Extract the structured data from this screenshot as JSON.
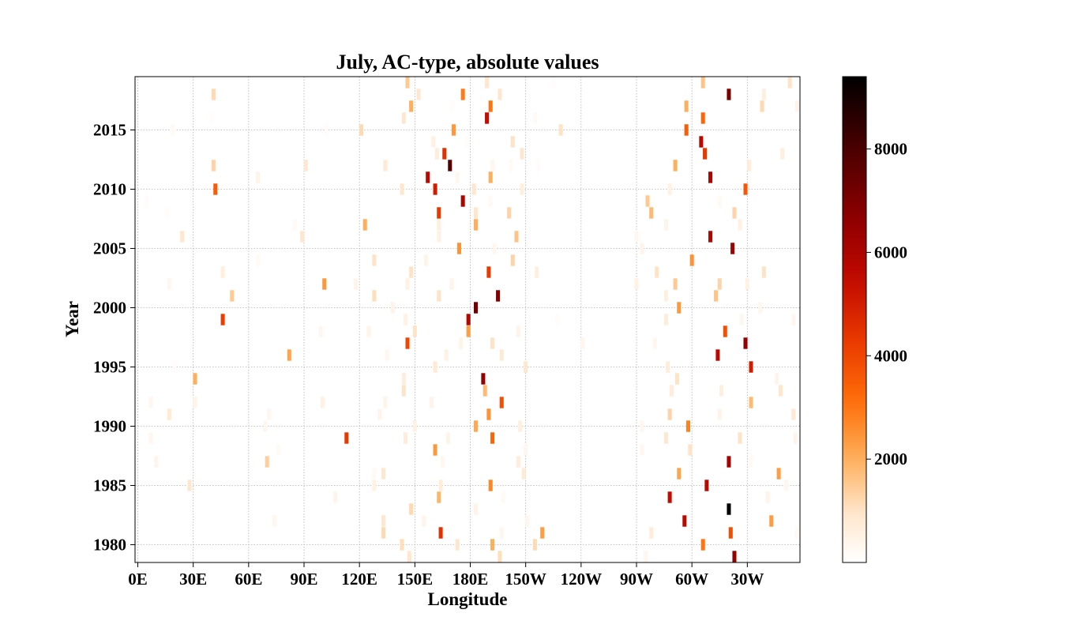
{
  "chart_data": {
    "type": "heatmap",
    "title": "July, AC-type, absolute values",
    "xlabel": "Longitude",
    "ylabel": "Year",
    "x_tick_labels": [
      "0E",
      "30E",
      "60E",
      "90E",
      "120E",
      "150E",
      "180E",
      "150W",
      "120W",
      "90W",
      "60W",
      "30W"
    ],
    "x_tick_positions_deg": [
      0,
      30,
      60,
      90,
      120,
      150,
      180,
      210,
      240,
      270,
      300,
      330
    ],
    "xlim_deg": [
      -1.5,
      358.5
    ],
    "y_ticks": [
      1980,
      1985,
      1990,
      1995,
      2000,
      2005,
      2010,
      2015
    ],
    "ylim": [
      1978.5,
      2019.5
    ],
    "grid": true,
    "colorbar": {
      "colormap": "gist_heat_r",
      "range": [
        0,
        9400
      ],
      "ticks": [
        2000,
        4000,
        6000,
        8000
      ]
    },
    "cell_width_deg": 2.5,
    "cells": [
      [
        146,
        2019,
        1500
      ],
      [
        189,
        2019,
        900
      ],
      [
        306,
        2019,
        1600
      ],
      [
        353,
        2019,
        1000
      ],
      [
        225,
        2019,
        100
      ],
      [
        41,
        2018,
        1200
      ],
      [
        152,
        2018,
        900
      ],
      [
        176,
        2018,
        2900
      ],
      [
        196,
        2018,
        900
      ],
      [
        320,
        2018,
        7000
      ],
      [
        339,
        2018,
        600
      ],
      [
        148,
        2017,
        2000
      ],
      [
        191,
        2017,
        3000
      ],
      [
        297,
        2017,
        2000
      ],
      [
        338,
        2017,
        1200
      ],
      [
        357,
        2017,
        400
      ],
      [
        170,
        2017,
        100
      ],
      [
        144,
        2016,
        900
      ],
      [
        189,
        2016,
        5400
      ],
      [
        306,
        2016,
        3300
      ],
      [
        215,
        2016,
        200
      ],
      [
        40,
        2016,
        100
      ],
      [
        19,
        2015,
        200
      ],
      [
        121,
        2015,
        1200
      ],
      [
        171,
        2015,
        2400
      ],
      [
        229,
        2015,
        1000
      ],
      [
        297,
        2015,
        3500
      ],
      [
        102,
        2015,
        100
      ],
      [
        160,
        2014,
        500
      ],
      [
        203,
        2014,
        1000
      ],
      [
        305,
        2014,
        5700
      ],
      [
        178,
        2014,
        100
      ],
      [
        162,
        2013,
        700
      ],
      [
        166,
        2013,
        4500
      ],
      [
        208,
        2013,
        900
      ],
      [
        307,
        2013,
        4300
      ],
      [
        349,
        2013,
        600
      ],
      [
        41,
        2012,
        1300
      ],
      [
        91,
        2012,
        900
      ],
      [
        134,
        2012,
        800
      ],
      [
        169,
        2012,
        7800
      ],
      [
        192,
        2012,
        300
      ],
      [
        291,
        2012,
        2000
      ],
      [
        331,
        2012,
        700
      ],
      [
        202,
        2012,
        200
      ],
      [
        217,
        2012,
        100
      ],
      [
        65,
        2011,
        400
      ],
      [
        157,
        2011,
        5600
      ],
      [
        173,
        2011,
        300
      ],
      [
        191,
        2011,
        2000
      ],
      [
        310,
        2011,
        6000
      ],
      [
        42,
        2010,
        3500
      ],
      [
        143,
        2010,
        900
      ],
      [
        161,
        2010,
        5000
      ],
      [
        182,
        2010,
        900
      ],
      [
        208,
        2010,
        600
      ],
      [
        288,
        2010,
        500
      ],
      [
        329,
        2010,
        3600
      ],
      [
        176,
        2009,
        6000
      ],
      [
        191,
        2009,
        200
      ],
      [
        276,
        2009,
        1500
      ],
      [
        315,
        2009,
        200
      ],
      [
        5,
        2009,
        100
      ],
      [
        163,
        2008,
        4300
      ],
      [
        183,
        2008,
        900
      ],
      [
        201,
        2008,
        1300
      ],
      [
        278,
        2008,
        1800
      ],
      [
        323,
        2008,
        1300
      ],
      [
        16,
        2008,
        100
      ],
      [
        123,
        2007,
        2000
      ],
      [
        163,
        2007,
        600
      ],
      [
        183,
        2007,
        2000
      ],
      [
        85,
        2007,
        200
      ],
      [
        286,
        2007,
        400
      ],
      [
        326,
        2007,
        500
      ],
      [
        24,
        2006,
        900
      ],
      [
        89,
        2006,
        900
      ],
      [
        163,
        2006,
        500
      ],
      [
        205,
        2006,
        1600
      ],
      [
        270,
        2006,
        300
      ],
      [
        310,
        2006,
        5900
      ],
      [
        174,
        2005,
        2500
      ],
      [
        193,
        2005,
        300
      ],
      [
        322,
        2005,
        6300
      ],
      [
        273,
        2005,
        400
      ],
      [
        65,
        2004,
        200
      ],
      [
        128,
        2004,
        1000
      ],
      [
        156,
        2004,
        400
      ],
      [
        203,
        2004,
        1300
      ],
      [
        300,
        2004,
        2500
      ],
      [
        46,
        2003,
        600
      ],
      [
        148,
        2003,
        1000
      ],
      [
        190,
        2003,
        4300
      ],
      [
        216,
        2003,
        600
      ],
      [
        281,
        2003,
        1000
      ],
      [
        339,
        2003,
        1000
      ],
      [
        17,
        2002,
        300
      ],
      [
        101,
        2002,
        2400
      ],
      [
        118,
        2002,
        400
      ],
      [
        146,
        2002,
        500
      ],
      [
        170,
        2002,
        400
      ],
      [
        270,
        2002,
        500
      ],
      [
        291,
        2002,
        1500
      ],
      [
        315,
        2002,
        1300
      ],
      [
        330,
        2002,
        500
      ],
      [
        51,
        2001,
        1500
      ],
      [
        128,
        2001,
        1100
      ],
      [
        163,
        2001,
        1000
      ],
      [
        195,
        2001,
        6900
      ],
      [
        286,
        2001,
        600
      ],
      [
        313,
        2001,
        1600
      ],
      [
        138,
        2000,
        400
      ],
      [
        183,
        2000,
        7200
      ],
      [
        293,
        2000,
        2400
      ],
      [
        337,
        2000,
        300
      ],
      [
        46,
        1999,
        4200
      ],
      [
        145,
        1999,
        500
      ],
      [
        179,
        1999,
        5800
      ],
      [
        286,
        1999,
        700
      ],
      [
        327,
        1999,
        300
      ],
      [
        355,
        1999,
        300
      ],
      [
        227,
        1999,
        100
      ],
      [
        99,
        1998,
        300
      ],
      [
        125,
        1998,
        400
      ],
      [
        150,
        1998,
        1000
      ],
      [
        179,
        1998,
        2300
      ],
      [
        206,
        1998,
        400
      ],
      [
        318,
        1998,
        3800
      ],
      [
        146,
        1997,
        4000
      ],
      [
        175,
        1997,
        400
      ],
      [
        192,
        1997,
        1000
      ],
      [
        241,
        1997,
        300
      ],
      [
        280,
        1997,
        300
      ],
      [
        329,
        1997,
        6500
      ],
      [
        82,
        1996,
        2200
      ],
      [
        135,
        1996,
        300
      ],
      [
        167,
        1996,
        500
      ],
      [
        197,
        1996,
        800
      ],
      [
        314,
        1996,
        5600
      ],
      [
        20,
        1995,
        100
      ],
      [
        161,
        1995,
        800
      ],
      [
        210,
        1995,
        900
      ],
      [
        287,
        1995,
        700
      ],
      [
        332,
        1995,
        5000
      ],
      [
        31,
        1994,
        2000
      ],
      [
        144,
        1994,
        700
      ],
      [
        187,
        1994,
        6500
      ],
      [
        292,
        1994,
        1000
      ],
      [
        346,
        1994,
        400
      ],
      [
        144,
        1993,
        1000
      ],
      [
        188,
        1993,
        1800
      ],
      [
        289,
        1993,
        700
      ],
      [
        316,
        1993,
        600
      ],
      [
        348,
        1993,
        900
      ],
      [
        7,
        1992,
        300
      ],
      [
        31,
        1992,
        400
      ],
      [
        100,
        1992,
        500
      ],
      [
        134,
        1992,
        400
      ],
      [
        159,
        1992,
        400
      ],
      [
        197,
        1992,
        3800
      ],
      [
        332,
        1992,
        1800
      ],
      [
        17,
        1991,
        800
      ],
      [
        71,
        1991,
        300
      ],
      [
        131,
        1991,
        400
      ],
      [
        190,
        1991,
        2500
      ],
      [
        288,
        1991,
        1300
      ],
      [
        315,
        1991,
        400
      ],
      [
        355,
        1991,
        800
      ],
      [
        69,
        1990,
        300
      ],
      [
        150,
        1990,
        500
      ],
      [
        183,
        1990,
        2100
      ],
      [
        207,
        1990,
        600
      ],
      [
        273,
        1990,
        300
      ],
      [
        298,
        1990,
        2800
      ],
      [
        7,
        1989,
        300
      ],
      [
        113,
        1989,
        4300
      ],
      [
        145,
        1989,
        700
      ],
      [
        168,
        1989,
        400
      ],
      [
        192,
        1989,
        3300
      ],
      [
        286,
        1989,
        900
      ],
      [
        326,
        1989,
        1000
      ],
      [
        356,
        1989,
        400
      ],
      [
        76,
        1988,
        200
      ],
      [
        161,
        1988,
        2400
      ],
      [
        210,
        1988,
        300
      ],
      [
        299,
        1988,
        1000
      ],
      [
        273,
        1988,
        300
      ],
      [
        10,
        1987,
        400
      ],
      [
        70,
        1987,
        1400
      ],
      [
        165,
        1987,
        300
      ],
      [
        206,
        1987,
        700
      ],
      [
        320,
        1987,
        6200
      ],
      [
        332,
        1987,
        200
      ],
      [
        133,
        1986,
        900
      ],
      [
        209,
        1986,
        800
      ],
      [
        293,
        1986,
        2200
      ],
      [
        347,
        1986,
        2300
      ],
      [
        128,
        1986,
        200
      ],
      [
        28,
        1985,
        900
      ],
      [
        128,
        1985,
        500
      ],
      [
        164,
        1985,
        700
      ],
      [
        191,
        1985,
        2700
      ],
      [
        308,
        1985,
        5700
      ],
      [
        351,
        1985,
        300
      ],
      [
        107,
        1984,
        400
      ],
      [
        163,
        1984,
        1900
      ],
      [
        198,
        1984,
        200
      ],
      [
        288,
        1984,
        5500
      ],
      [
        341,
        1984,
        400
      ],
      [
        148,
        1983,
        1200
      ],
      [
        183,
        1983,
        400
      ],
      [
        320,
        1983,
        9400
      ],
      [
        74,
        1982,
        300
      ],
      [
        133,
        1982,
        900
      ],
      [
        155,
        1982,
        400
      ],
      [
        211,
        1982,
        300
      ],
      [
        296,
        1982,
        5600
      ],
      [
        343,
        1982,
        2300
      ],
      [
        133,
        1981,
        1200
      ],
      [
        164,
        1981,
        4500
      ],
      [
        197,
        1981,
        300
      ],
      [
        219,
        1981,
        2300
      ],
      [
        278,
        1981,
        700
      ],
      [
        321,
        1981,
        3800
      ],
      [
        357,
        1981,
        200
      ],
      [
        143,
        1980,
        1100
      ],
      [
        173,
        1980,
        900
      ],
      [
        192,
        1980,
        2000
      ],
      [
        215,
        1980,
        1200
      ],
      [
        306,
        1980,
        3000
      ],
      [
        147,
        1979,
        900
      ],
      [
        196,
        1979,
        1100
      ],
      [
        275,
        1979,
        300
      ],
      [
        323,
        1979,
        6500
      ]
    ]
  }
}
